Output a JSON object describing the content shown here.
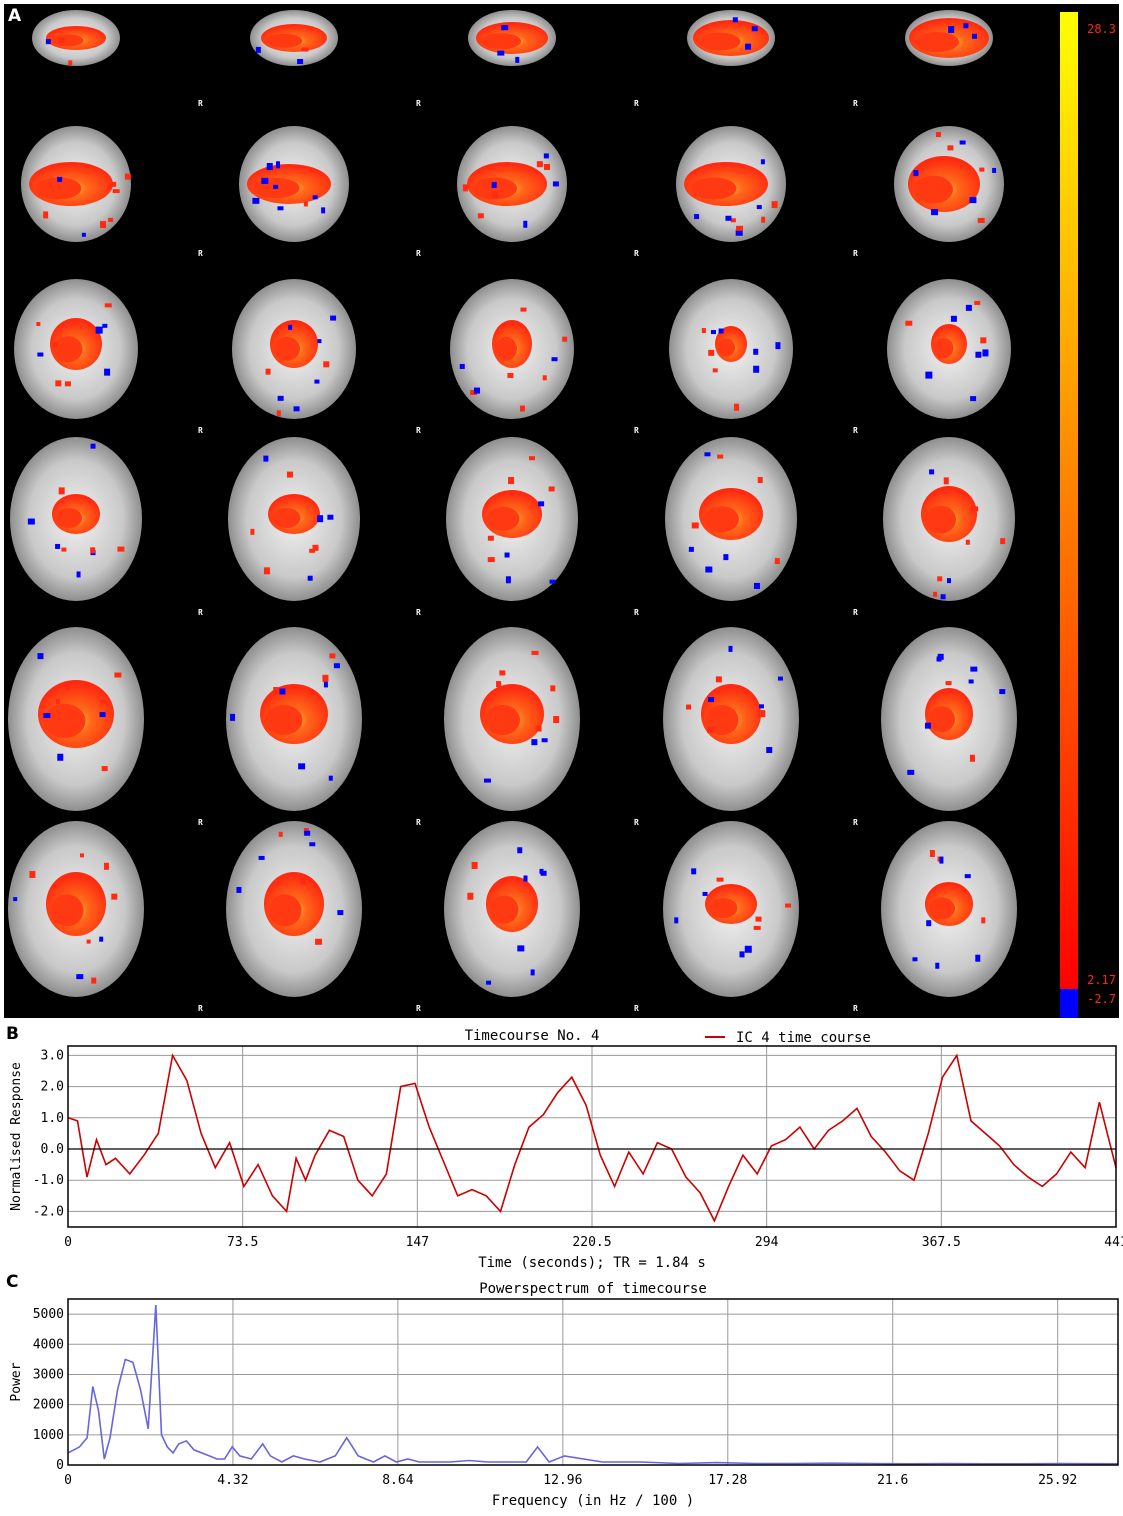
{
  "panels": {
    "a": "A",
    "b": "B",
    "c": "C"
  },
  "brain_panel": {
    "orientation_marker": "R",
    "rows": 6,
    "columns": 5,
    "colorbar": {
      "max_label": "28.3",
      "pos_threshold_label": "2.17",
      "neg_threshold_label": "-2.7",
      "colors": {
        "low": "#ff0000",
        "mid": "#ff8c00",
        "high": "#ffff00",
        "negative": "#0000ff"
      }
    }
  },
  "chart_data": [
    {
      "type": "line",
      "title": "Timecourse No. 4",
      "legend": "IC 4 time course",
      "xlabel": "Time (seconds); TR = 1.84 s",
      "ylabel": "Normalised Response",
      "xlim": [
        0,
        441
      ],
      "ylim": [
        -2.5,
        3.3
      ],
      "xticks": [
        "0",
        "73.5",
        "147",
        "220.5",
        "294",
        "367.5",
        "441"
      ],
      "yticks": [
        "3.0",
        "2.0",
        "1.0",
        "0.0",
        "-1.0",
        "-2.0"
      ],
      "ytick_values": [
        3,
        2,
        1,
        0,
        -1,
        -2
      ],
      "grid": true,
      "color": "#cc0000",
      "x": [
        0,
        4,
        8,
        12,
        16,
        20,
        26,
        32,
        38,
        44,
        50,
        56,
        62,
        68,
        74,
        80,
        86,
        92,
        96,
        100,
        104,
        110,
        116,
        122,
        128,
        134,
        140,
        146,
        152,
        158,
        164,
        170,
        176,
        182,
        188,
        194,
        200,
        206,
        212,
        218,
        224,
        230,
        236,
        242,
        248,
        254,
        260,
        266,
        272,
        278,
        284,
        290,
        296,
        302,
        308,
        314,
        320,
        326,
        332,
        338,
        344,
        350,
        356,
        362,
        368,
        374,
        380,
        386,
        392,
        398,
        404,
        410,
        416,
        422,
        428,
        434,
        441
      ],
      "y": [
        1.0,
        0.9,
        -0.9,
        0.3,
        -0.5,
        -0.3,
        -0.8,
        -0.2,
        0.5,
        3.0,
        2.2,
        0.5,
        -0.6,
        0.2,
        -1.2,
        -0.5,
        -1.5,
        -2.0,
        -0.3,
        -1.0,
        -0.2,
        0.6,
        0.4,
        -1.0,
        -1.5,
        -0.8,
        2.0,
        2.1,
        0.7,
        -0.4,
        -1.5,
        -1.3,
        -1.5,
        -2.0,
        -0.5,
        0.7,
        1.1,
        1.8,
        2.3,
        1.4,
        -0.2,
        -1.2,
        -0.1,
        -0.8,
        0.2,
        0.0,
        -0.9,
        -1.4,
        -2.3,
        -1.2,
        -0.2,
        -0.8,
        0.1,
        0.3,
        0.7,
        0.0,
        0.6,
        0.9,
        1.3,
        0.4,
        -0.1,
        -0.7,
        -1.0,
        0.5,
        2.3,
        3.0,
        0.9,
        0.5,
        0.1,
        -0.5,
        -0.9,
        -1.2,
        -0.8,
        -0.1,
        -0.6,
        1.5,
        -0.6
      ]
    },
    {
      "type": "line",
      "title": "Powerspectrum of timecourse",
      "xlabel": "Frequency (in Hz / 100 )",
      "ylabel": "Power",
      "xlim": [
        0,
        27.5
      ],
      "ylim": [
        0,
        5500
      ],
      "xticks": [
        "0",
        "4.32",
        "8.64",
        "12.96",
        "17.28",
        "21.6",
        "25.92"
      ],
      "xtick_values": [
        0,
        4.32,
        8.64,
        12.96,
        17.28,
        21.6,
        25.92
      ],
      "yticks": [
        "5000",
        "4000",
        "3000",
        "2000",
        "1000",
        "0"
      ],
      "ytick_values": [
        5000,
        4000,
        3000,
        2000,
        1000,
        0
      ],
      "grid": true,
      "color": "#6666dd",
      "x": [
        0,
        0.3,
        0.5,
        0.65,
        0.8,
        0.95,
        1.1,
        1.3,
        1.5,
        1.7,
        1.9,
        2.1,
        2.3,
        2.45,
        2.6,
        2.75,
        2.9,
        3.1,
        3.3,
        3.5,
        3.7,
        3.9,
        4.1,
        4.3,
        4.5,
        4.8,
        5.1,
        5.3,
        5.6,
        5.9,
        6.2,
        6.6,
        7.0,
        7.3,
        7.6,
        7.8,
        8.0,
        8.3,
        8.6,
        8.9,
        9.2,
        9.6,
        10.0,
        10.5,
        11.0,
        11.5,
        12.0,
        12.3,
        12.6,
        13.0,
        14.0,
        15.0,
        16.0,
        17.0,
        18.0,
        19.0,
        20.0,
        21.0,
        22.0,
        23.0,
        24.0,
        25.0,
        26.0,
        27.5
      ],
      "y": [
        400,
        600,
        900,
        2600,
        1800,
        200,
        900,
        2500,
        3500,
        3400,
        2500,
        1200,
        5300,
        1000,
        600,
        400,
        700,
        800,
        500,
        400,
        300,
        200,
        200,
        600,
        300,
        200,
        700,
        300,
        100,
        300,
        200,
        100,
        300,
        900,
        300,
        200,
        100,
        300,
        100,
        200,
        100,
        100,
        100,
        150,
        100,
        100,
        100,
        600,
        100,
        300,
        100,
        100,
        50,
        80,
        50,
        50,
        60,
        50,
        40,
        50,
        40,
        40,
        50,
        40
      ]
    }
  ]
}
